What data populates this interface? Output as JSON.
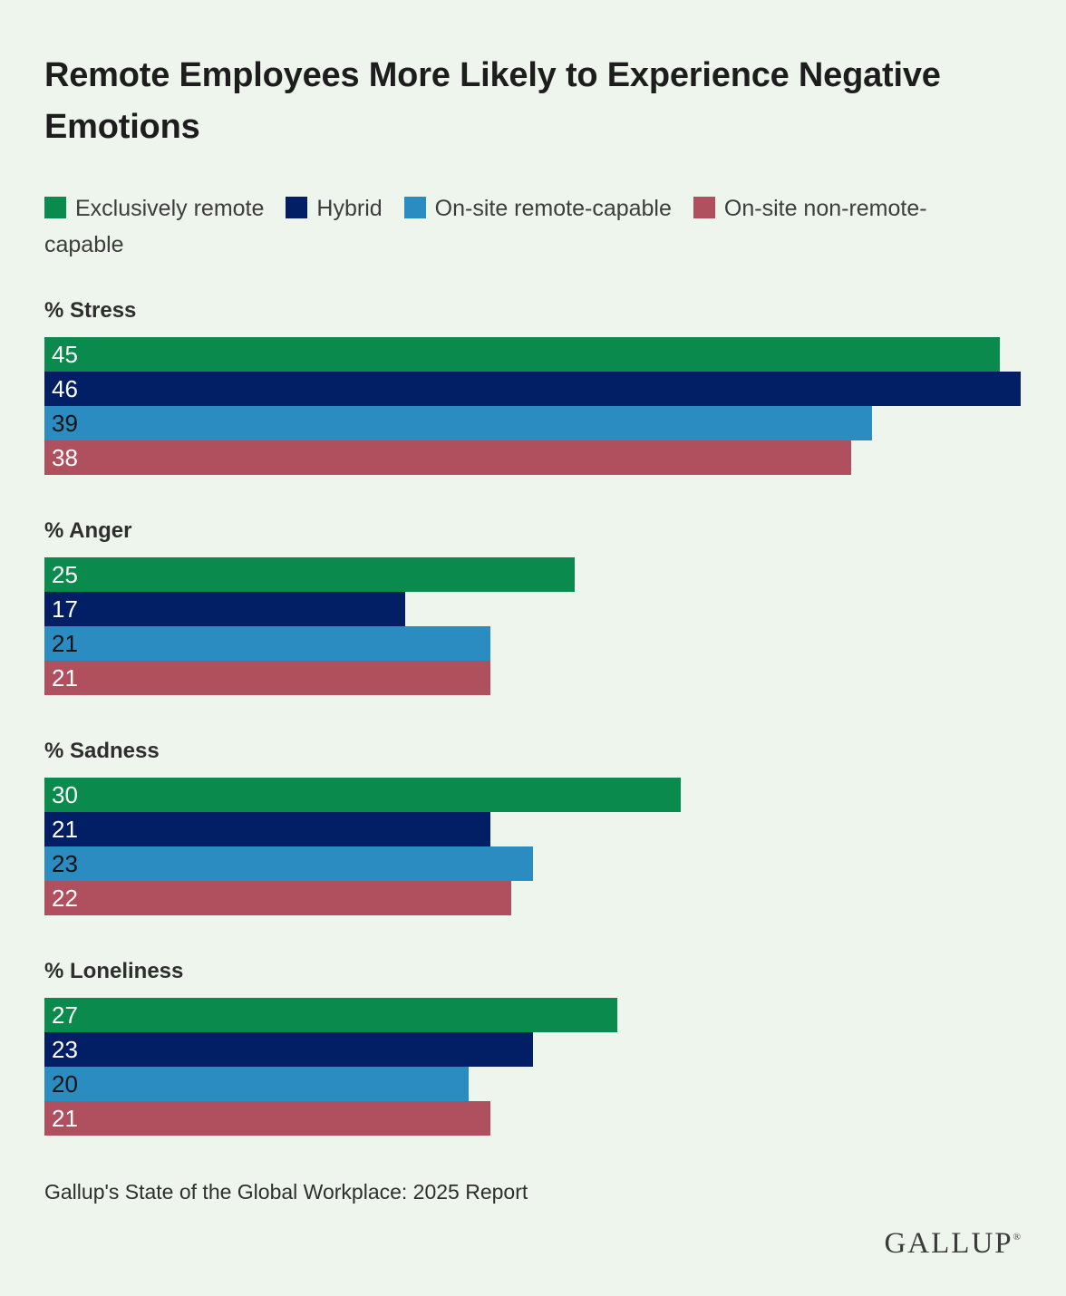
{
  "page": {
    "background_color": "#eef5ec",
    "title": "Remote Employees More Likely to Experience Negative Emotions",
    "title_lines": [
      "Remote Employees More Likely to Experience Negative",
      "Emotions"
    ],
    "footer": {
      "source": "Gallup's State of the Global Workplace: 2025 Report",
      "brand": "GALLUP",
      "registered_mark": "®"
    }
  },
  "legend": {
    "items": [
      {
        "label": "Exclusively remote",
        "label_lines": [
          "Exclusively remote"
        ],
        "color": "#0a8a4c"
      },
      {
        "label": "Hybrid",
        "label_lines": [
          "Hybrid"
        ],
        "color": "#021f66"
      },
      {
        "label": "On-site remote-capable",
        "label_lines": [
          "On-site remote-capable"
        ],
        "color": "#2b8cc1"
      },
      {
        "label": "On-site non-remote-capable",
        "label_lines": [
          "On-site non-remote-",
          "capable"
        ],
        "color": "#b04f5e"
      }
    ]
  },
  "chart_data": {
    "type": "bar",
    "orientation": "horizontal",
    "title": "Remote Employees More Likely to Experience Negative Emotions",
    "categories": [
      "% Stress",
      "% Anger",
      "% Sadness",
      "% Loneliness"
    ],
    "series": [
      {
        "name": "Exclusively remote",
        "color": "#0a8a4c",
        "label_color": "#ffffff",
        "values": [
          45,
          25,
          30,
          27
        ]
      },
      {
        "name": "Hybrid",
        "color": "#021f66",
        "label_color": "#ffffff",
        "values": [
          46,
          17,
          21,
          23
        ]
      },
      {
        "name": "On-site remote-capable",
        "color": "#2b8cc1",
        "label_color": "#141414",
        "values": [
          39,
          21,
          23,
          20
        ]
      },
      {
        "name": "On-site non-remote-capable",
        "color": "#b04f5e",
        "label_color": "#ffffff",
        "values": [
          38,
          21,
          22,
          21
        ]
      }
    ],
    "xlim": [
      0,
      46
    ],
    "value_labels_position": "inside-left",
    "grid": false,
    "legend_position": "top",
    "source": "Gallup's State of the Global Workplace: 2025 Report"
  }
}
